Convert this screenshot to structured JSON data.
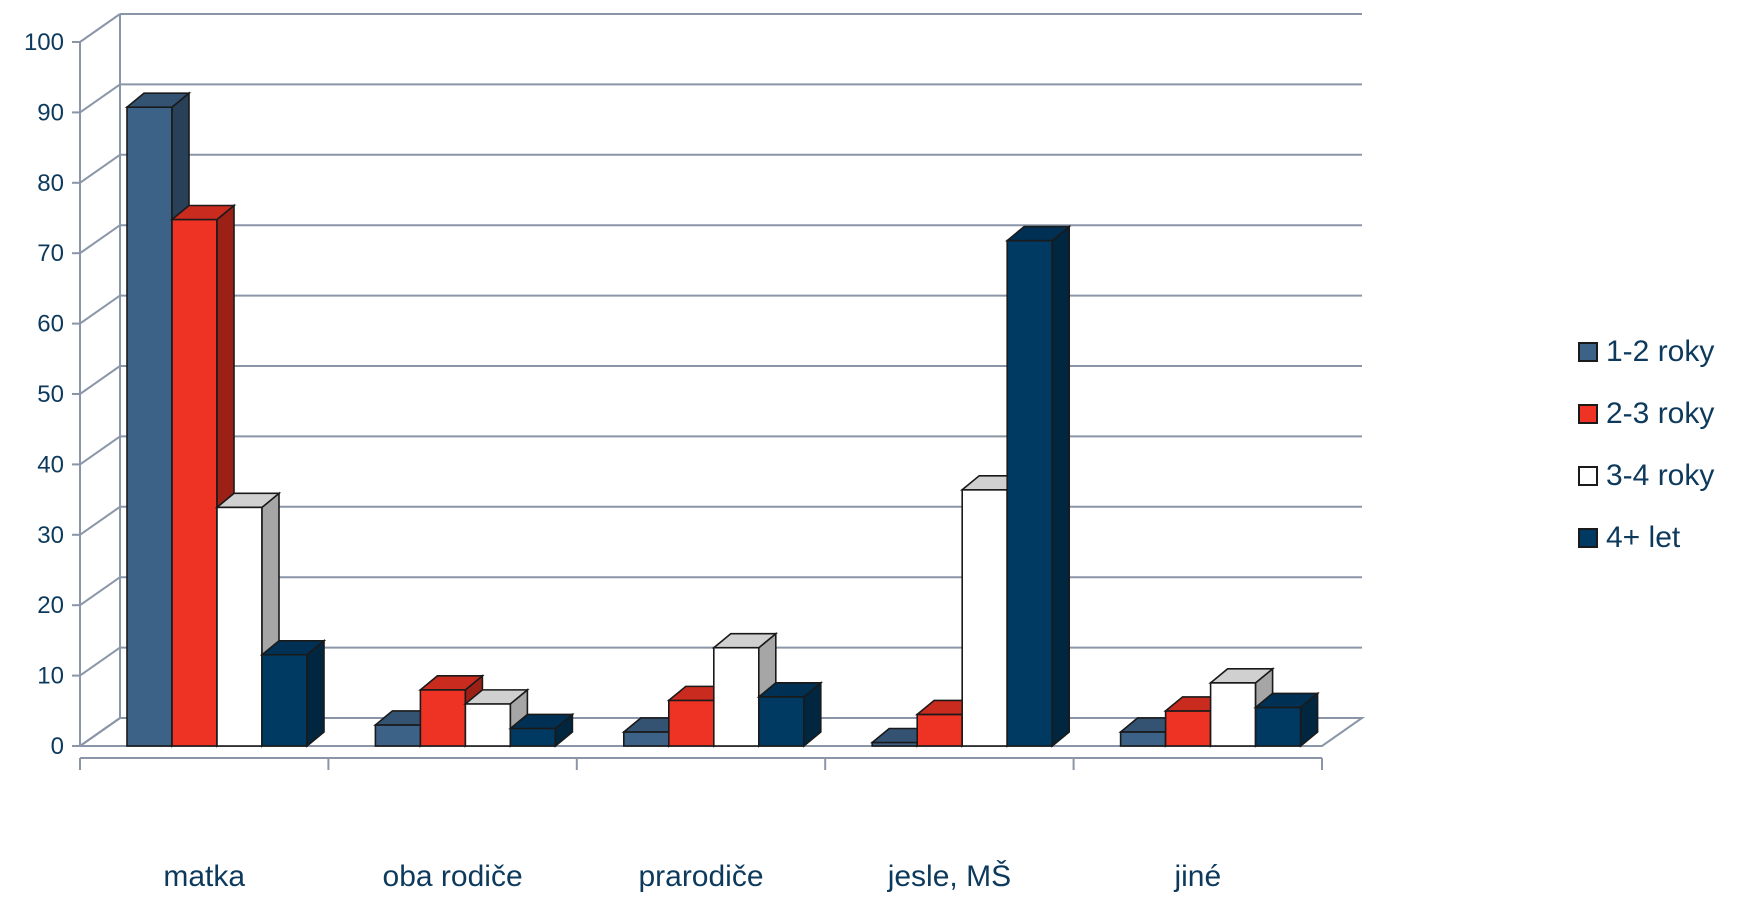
{
  "chart_data": {
    "type": "bar",
    "title": "",
    "xlabel": "",
    "ylabel": "",
    "ylim": [
      0,
      100
    ],
    "yticks": [
      "0",
      "10",
      "20",
      "30",
      "40",
      "50",
      "60",
      "70",
      "80",
      "90",
      "100"
    ],
    "categories": [
      "matka",
      "oba rodiče",
      "prarodiče",
      "jesle, MŠ",
      "jiné"
    ],
    "series": [
      {
        "name": "1-2 roky",
        "color": "#3d6287",
        "values": [
          91,
          3,
          2,
          0.5,
          2
        ]
      },
      {
        "name": "2-3 roky",
        "color": "#ee3224",
        "values": [
          75,
          8,
          6.5,
          4.5,
          5
        ]
      },
      {
        "name": "3-4 roky",
        "color": "#ffffff",
        "values": [
          34,
          6,
          14,
          36.5,
          9
        ]
      },
      {
        "name": "4+ let",
        "color": "#003a63",
        "values": [
          13,
          2.5,
          7,
          72,
          5.5
        ]
      }
    ],
    "grid": true,
    "legend_position": "right",
    "style": "3d-clustered-column"
  }
}
